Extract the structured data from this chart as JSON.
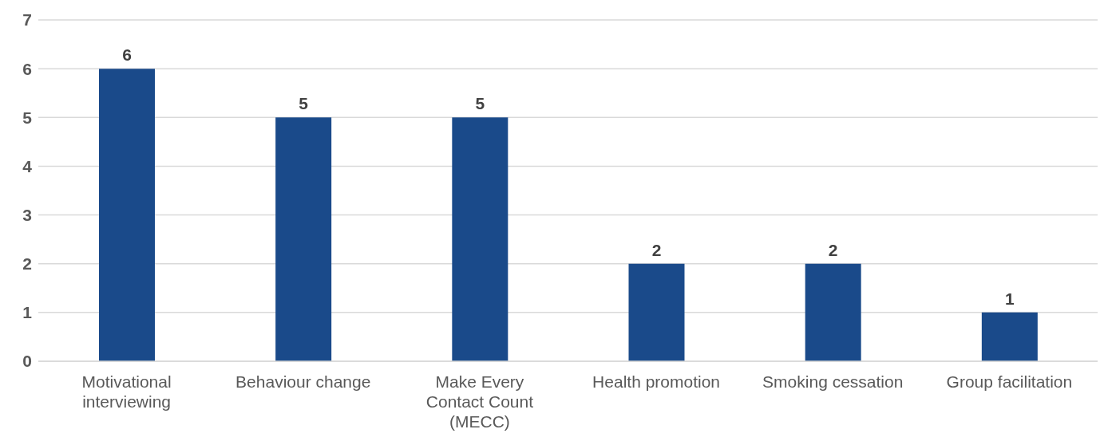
{
  "chart_data": {
    "type": "bar",
    "categories": [
      "Motivational interviewing",
      "Behaviour change",
      "Make Every Contact Count (MECC)",
      "Health promotion",
      "Smoking cessation",
      "Group facilitation"
    ],
    "values": [
      6,
      5,
      5,
      2,
      2,
      1
    ],
    "color": "#1a4a8a",
    "ylim": [
      0,
      7
    ],
    "yticks": [
      0,
      1,
      2,
      3,
      4,
      5,
      6,
      7
    ],
    "grid": "y",
    "data_labels": true
  }
}
